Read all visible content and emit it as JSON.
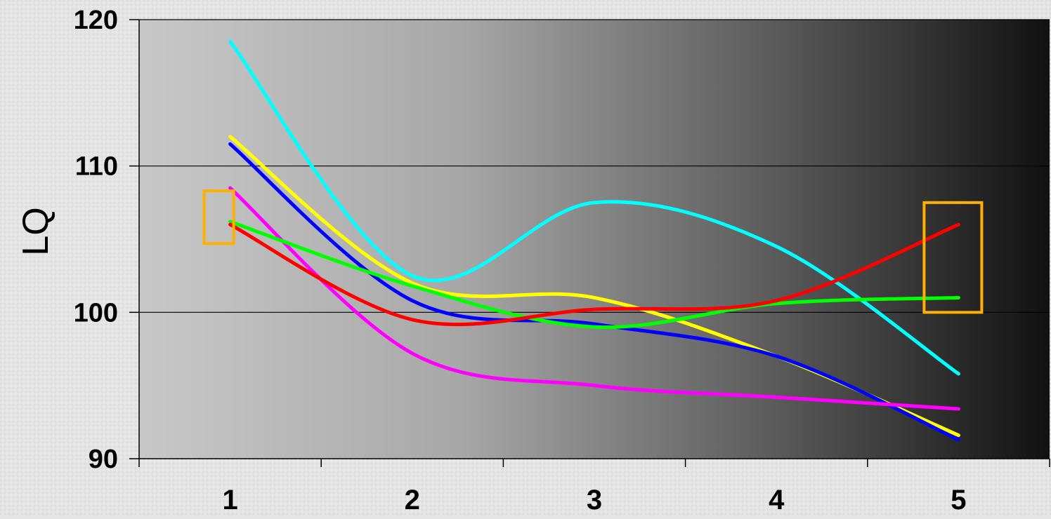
{
  "chart_data": {
    "type": "line",
    "title": "",
    "ylabel": "LQ",
    "xlabel": "",
    "categories": [
      "1",
      "2",
      "3",
      "4",
      "5"
    ],
    "ylim": [
      90,
      120
    ],
    "yticks": [
      90,
      100,
      110,
      120
    ],
    "grid": true,
    "smooth": true,
    "series": [
      {
        "color": "#00ffff",
        "values": [
          118.5,
          102.5,
          107.5,
          104.5,
          95.8
        ]
      },
      {
        "color": "#ffff00",
        "values": [
          112.0,
          102.0,
          101.0,
          97.0,
          91.6
        ]
      },
      {
        "color": "#0000ff",
        "values": [
          111.5,
          100.8,
          99.2,
          97.0,
          91.3
        ]
      },
      {
        "color": "#ff00ff",
        "values": [
          108.5,
          97.2,
          95.0,
          94.2,
          93.4
        ]
      },
      {
        "color": "#00ff00",
        "values": [
          106.2,
          101.8,
          99.0,
          100.6,
          101.0
        ]
      },
      {
        "color": "#ff0000",
        "values": [
          106.0,
          99.5,
          100.2,
          100.8,
          106.0
        ]
      }
    ],
    "highlight_boxes": [
      {
        "category": "1",
        "y_low": 104.7,
        "y_high": 108.3,
        "color": "#ffb000"
      },
      {
        "category": "5",
        "y_low": 100.0,
        "y_high": 107.5,
        "color": "#ffb000"
      }
    ]
  }
}
